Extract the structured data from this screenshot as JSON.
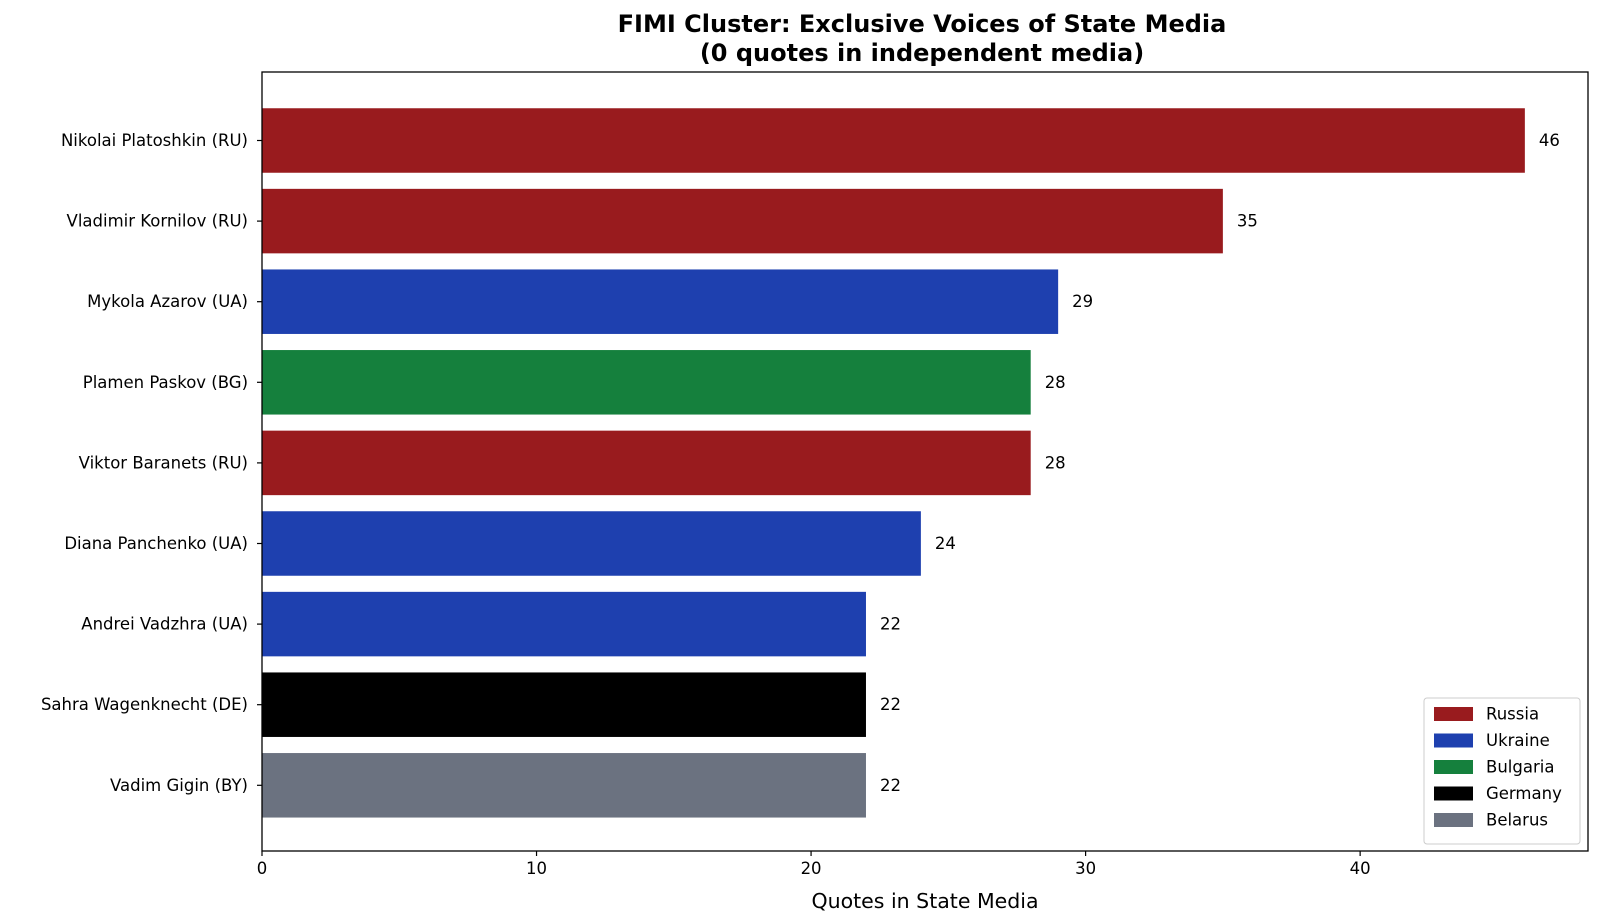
{
  "chart_data": {
    "type": "bar",
    "orientation": "horizontal",
    "title": "FIMI Cluster: Exclusive Voices of State Media",
    "subtitle": "(0 quotes in independent media)",
    "xlabel": "Quotes in State Media",
    "ylabel": "",
    "xlim": [
      0,
      48.3
    ],
    "xticks": [
      0,
      10,
      20,
      30,
      40
    ],
    "grid": false,
    "legend_position": "lower-right",
    "categories": [
      "Nikolai Platoshkin (RU)",
      "Vladimir Kornilov (RU)",
      "Mykola Azarov (UA)",
      "Plamen Paskov (BG)",
      "Viktor Baranets (RU)",
      "Diana Panchenko (UA)",
      "Andrei Vadzhra (UA)",
      "Sahra Wagenknecht (DE)",
      "Vadim Gigin (BY)"
    ],
    "values": [
      46,
      35,
      29,
      28,
      28,
      24,
      22,
      22,
      22
    ],
    "bar_countries": [
      "Russia",
      "Russia",
      "Ukraine",
      "Bulgaria",
      "Russia",
      "Ukraine",
      "Ukraine",
      "Germany",
      "Belarus"
    ],
    "legend": [
      {
        "name": "Russia",
        "color": "#991b1e"
      },
      {
        "name": "Ukraine",
        "color": "#1e40af"
      },
      {
        "name": "Bulgaria",
        "color": "#15803d"
      },
      {
        "name": "Germany",
        "color": "#000000"
      },
      {
        "name": "Belarus",
        "color": "#6b7280"
      }
    ]
  }
}
